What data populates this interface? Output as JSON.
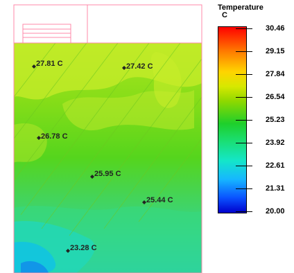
{
  "legend": {
    "title": "Temperature",
    "unit": "C",
    "max": 30.46,
    "min": 20.0,
    "ticks": [
      "30.46",
      "29.15",
      "27.84",
      "26.54",
      "25.23",
      "23.92",
      "22.61",
      "21.31",
      "20.00"
    ]
  },
  "probes": [
    {
      "label": "27.81 C"
    },
    {
      "label": "27.42 C"
    },
    {
      "label": "26.78 C"
    },
    {
      "label": "25.95 C"
    },
    {
      "label": "25.44 C"
    },
    {
      "label": "23.28 C"
    }
  ],
  "colors": {
    "border": "#ff88aa",
    "field_warm": "#c9ec33",
    "field_mid": "#7fdc1a",
    "field_cool": "#35dd80",
    "field_cold": "#14c9e6"
  }
}
